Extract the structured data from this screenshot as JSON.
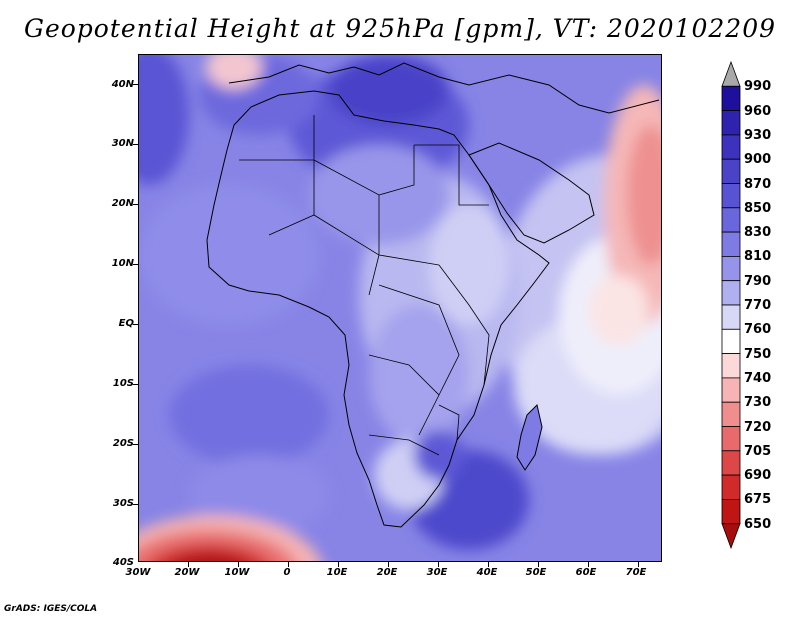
{
  "title": "Geopotential Height at 925hPa [gpm], VT: 2020102209",
  "footer": "GrADS: IGES/COLA",
  "latitude_labels": [
    "40N",
    "30N",
    "20N",
    "10N",
    "EQ",
    "10S",
    "20S",
    "30S",
    "40S"
  ],
  "longitude_labels": [
    "30W",
    "20W",
    "10W",
    "0",
    "10E",
    "20E",
    "30E",
    "40E",
    "50E",
    "60E",
    "70E"
  ],
  "colorbar": {
    "levels": [
      "990",
      "960",
      "930",
      "900",
      "870",
      "850",
      "830",
      "810",
      "790",
      "770",
      "760",
      "750",
      "740",
      "730",
      "720",
      "705",
      "690",
      "675",
      "650"
    ],
    "colors": [
      "#a9a9a9",
      "#1e0f9c",
      "#2e22ae",
      "#3c32bd",
      "#4a43c8",
      "#5853d3",
      "#6a66dc",
      "#7e7be4",
      "#9593ea",
      "#b0afef",
      "#d7d7f6",
      "#ffffff",
      "#fbd9d9",
      "#f6b4b4",
      "#f08e8e",
      "#e86a6a",
      "#dd4747",
      "#d12a2a",
      "#bf1515",
      "#a80d0d"
    ]
  }
}
